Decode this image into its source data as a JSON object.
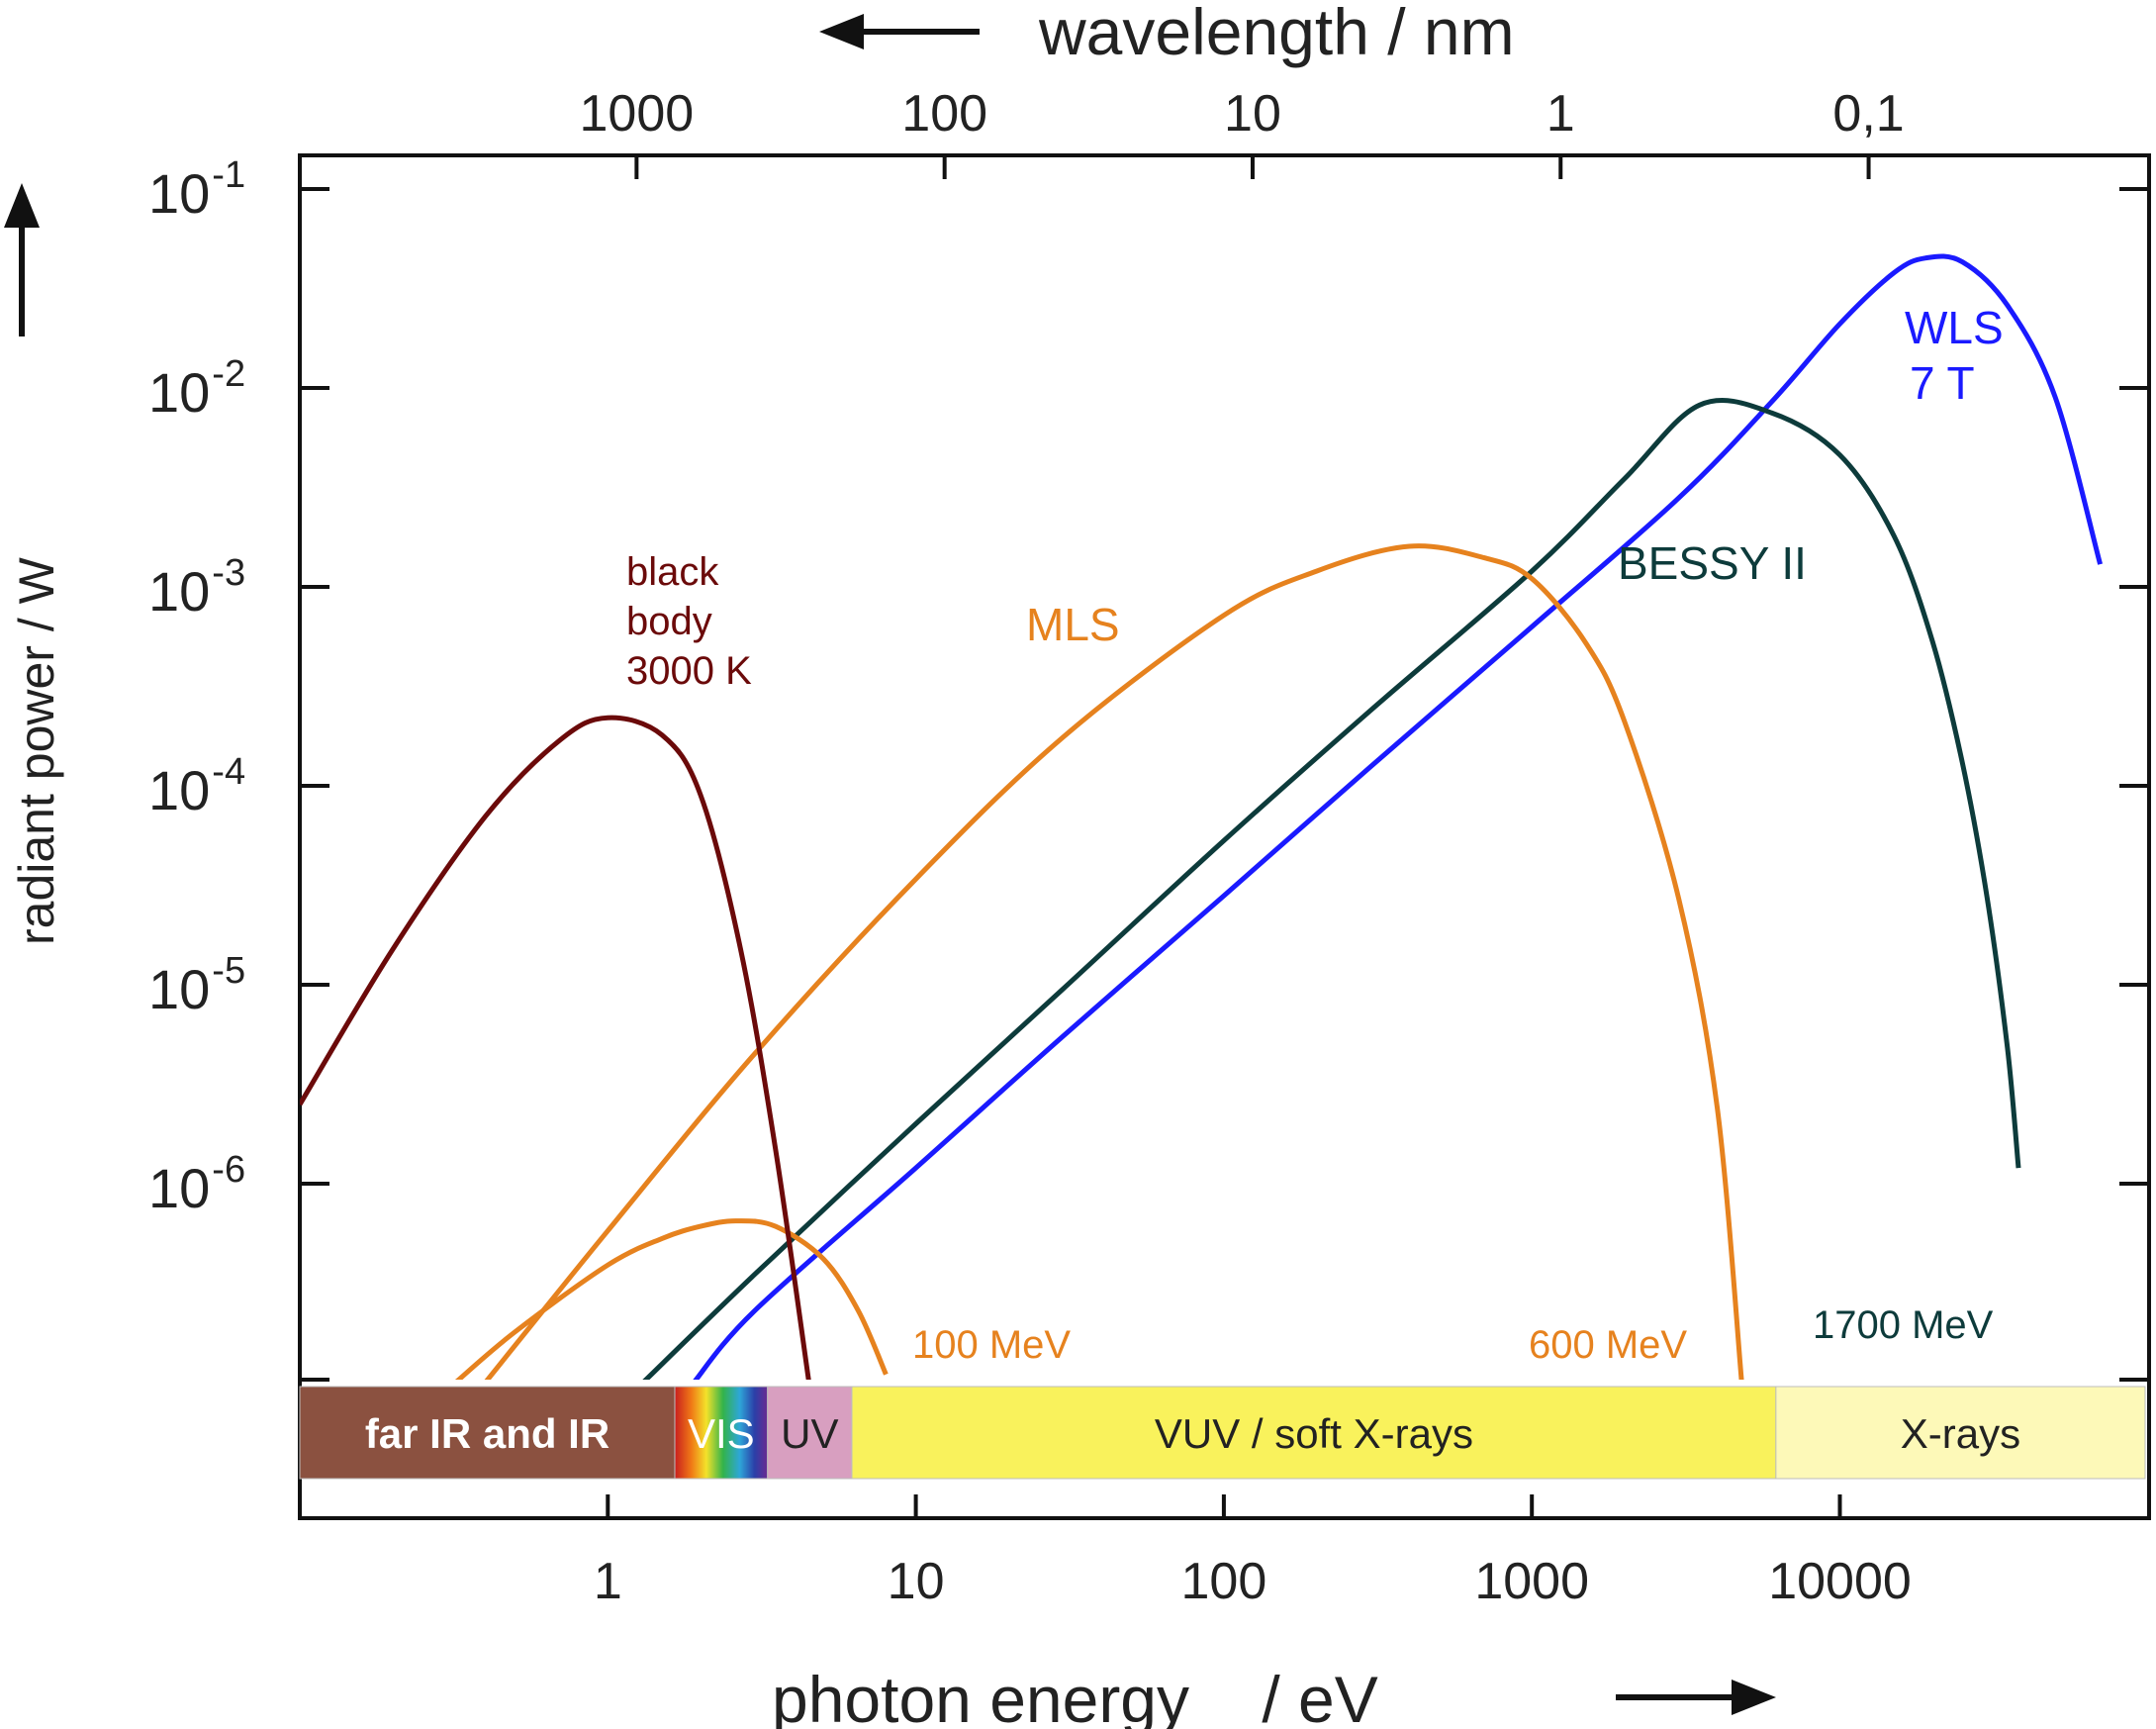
{
  "chart_data": {
    "type": "line",
    "x_axis": {
      "label": "photon energy    / eV",
      "scale": "log",
      "range": [
        0.1,
        100000
      ],
      "ticks": [
        1,
        10,
        100,
        1000,
        10000
      ],
      "tick_labels": [
        "1",
        "10",
        "100",
        "1000",
        "10000"
      ]
    },
    "x2_axis": {
      "label": "wavelength / nm",
      "scale": "log",
      "ticks": [
        1000,
        100,
        10,
        1,
        0.1
      ],
      "tick_labels": [
        "1000",
        "100",
        "10",
        "1",
        "0,1"
      ]
    },
    "y_axis": {
      "label": "radiant power / W",
      "scale": "log",
      "range": [
        1e-07,
        0.2
      ],
      "ticks": [
        0.1,
        0.01,
        0.001,
        0.0001,
        1e-05,
        1e-06
      ],
      "tick_bases": [
        "10",
        "10",
        "10",
        "10",
        "10",
        "10"
      ],
      "tick_exponents": [
        "-1",
        "-2",
        "-3",
        "-4",
        "-5",
        "-6"
      ]
    },
    "series": [
      {
        "name": "WLS 7 T",
        "color": "#1a1aff",
        "x": [
          1.9,
          3,
          10,
          30,
          100,
          300,
          1000,
          3000,
          6000,
          10000,
          15000,
          19000,
          25000,
          35000,
          50000,
          70000
        ],
        "y": [
          1e-07,
          2.3e-07,
          1.2e-06,
          5.5e-06,
          2.8e-05,
          0.000125,
          0.00063,
          0.0028,
          0.0085,
          0.021,
          0.038,
          0.045,
          0.043,
          0.026,
          0.009,
          0.0013
        ]
      },
      {
        "name": "BESSY II",
        "color": "#0d3b3b",
        "x": [
          1.3,
          3,
          10,
          30,
          100,
          300,
          1000,
          2000,
          3500,
          6000,
          10000,
          15000,
          20000,
          25000,
          30000,
          35000,
          38000
        ],
        "y": [
          1e-07,
          3.5e-07,
          2e-06,
          9.5e-06,
          5.3e-05,
          0.00024,
          0.0012,
          0.0035,
          0.0082,
          0.0075,
          0.0046,
          0.0018,
          0.00053,
          0.00013,
          2.8e-05,
          4.8e-06,
          1.2e-06
        ]
      },
      {
        "name": "600 MeV",
        "color": "#e6821e",
        "x": [
          0.4,
          1,
          3,
          10,
          30,
          100,
          200,
          400,
          700,
          1000,
          1500,
          2000,
          3000,
          4000,
          4800
        ],
        "y": [
          1e-07,
          5.8e-07,
          4.5e-06,
          3.4e-05,
          0.000175,
          0.00072,
          0.0012,
          0.0016,
          0.0014,
          0.0011,
          0.00052,
          0.00021,
          2.7e-05,
          2.4e-06,
          1e-07
        ]
      },
      {
        "name": "100 MeV",
        "color": "#e6821e",
        "x": [
          0.32,
          0.5,
          1,
          1.5,
          2,
          2.6,
          3.5,
          5,
          6.5,
          8
        ],
        "y": [
          1e-07,
          1.8e-07,
          3.9e-07,
          5.3e-07,
          6.1e-07,
          6.5e-07,
          6.1e-07,
          4.2e-07,
          2.3e-07,
          1.1e-07
        ]
      },
      {
        "name": "black body 3000 K",
        "color": "#6b0a0a",
        "x": [
          0.1,
          0.2,
          0.4,
          0.7,
          1,
          1.5,
          2,
          2.7,
          3.5,
          4.5
        ],
        "y": [
          2.5e-06,
          1.5e-05,
          7e-05,
          0.00017,
          0.00022,
          0.00018,
          9e-05,
          1.5e-05,
          1.5e-06,
          1e-07
        ]
      }
    ],
    "annotations": {
      "black_body": [
        "black",
        "body",
        "3000 K"
      ],
      "mls": "MLS",
      "bessy": "BESSY II",
      "wls": [
        "WLS",
        "7 T"
      ],
      "mev100": "100 MeV",
      "mev600": "600 MeV",
      "mev1700": "1700 MeV"
    },
    "bands": [
      {
        "label": "far IR and IR",
        "from": 0.1,
        "to": 1.65,
        "color": "#8b5140"
      },
      {
        "label": "VIS",
        "from": 1.65,
        "to": 3.3,
        "color": "spectrum"
      },
      {
        "label": "UV",
        "from": 3.3,
        "to": 6.2,
        "color": "#d89fc0"
      },
      {
        "label": "VUV / soft X-rays",
        "from": 6.2,
        "to": 6200,
        "color": "#f9f25c"
      },
      {
        "label": "X-rays",
        "from": 6200,
        "to": 100000,
        "color": "#fdf9b8"
      }
    ],
    "grid": false
  }
}
